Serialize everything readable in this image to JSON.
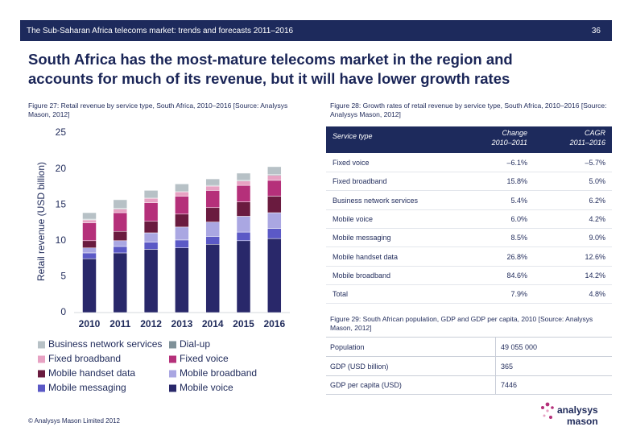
{
  "header": {
    "title": "The Sub-Saharan Africa telecoms market: trends and forecasts 2011–2016",
    "page_number": "36"
  },
  "headline": [
    "South Africa has the most-mature telecoms market in the region and",
    "accounts for much of its revenue, but it will have lower growth rates"
  ],
  "chart_data": {
    "type": "stacked_bar",
    "title": "Figure 27: Retail revenue by service type, South Africa, 2010–2016 [Source: Analysys Mason, 2012]",
    "y_label": "Retail revenue (USD billion)",
    "categories": [
      "2010",
      "2011",
      "2012",
      "2013",
      "2014",
      "2015",
      "2016"
    ],
    "ylim": [
      0,
      25
    ],
    "yticks": [
      0,
      5,
      10,
      15,
      20,
      25
    ],
    "grid": false,
    "series": [
      {
        "name": "Business network services",
        "color": "#b7c1c6",
        "values": [
          0.9,
          1.2,
          1.0,
          1.0,
          0.9,
          1.0,
          1.1
        ]
      },
      {
        "name": "Dial-up",
        "color": "#7f9198",
        "values": [
          0.1,
          0.1,
          0.1,
          0.1,
          0.1,
          0.1,
          0.1
        ]
      },
      {
        "name": "Fixed broadband",
        "color": "#e7a2c3",
        "values": [
          0.4,
          0.5,
          0.6,
          0.6,
          0.6,
          0.6,
          0.7
        ]
      },
      {
        "name": "Fixed voice",
        "color": "#b5307a",
        "values": [
          2.5,
          2.6,
          2.6,
          2.5,
          2.4,
          2.3,
          2.2
        ]
      },
      {
        "name": "Mobile handset data",
        "color": "#6a1b3f",
        "values": [
          1.0,
          1.3,
          1.6,
          1.8,
          2.0,
          2.0,
          2.3
        ]
      },
      {
        "name": "Mobile broadband",
        "color": "#aaa7e2",
        "values": [
          0.7,
          0.8,
          1.3,
          1.8,
          2.0,
          2.2,
          2.2
        ]
      },
      {
        "name": "Mobile messaging",
        "color": "#5b59c6",
        "values": [
          0.8,
          0.9,
          1.0,
          1.1,
          1.1,
          1.2,
          1.4
        ]
      },
      {
        "name": "Mobile voice",
        "color": "#29286a",
        "values": [
          7.5,
          8.3,
          8.8,
          9.0,
          9.5,
          10.0,
          10.3
        ]
      }
    ]
  },
  "figure28": {
    "caption": "Figure 28: Growth rates of retail revenue by service type, South Africa, 2010–2016 [Source: Analysys Mason, 2012]",
    "header": [
      [
        "Service type"
      ],
      [
        "Change",
        "2010–2011"
      ],
      [
        "CAGR",
        "2011–2016"
      ]
    ],
    "rows": [
      [
        "Fixed voice",
        "–6.1%",
        "–5.7%"
      ],
      [
        "Fixed broadband",
        "15.8%",
        "5.0%"
      ],
      [
        "Business network services",
        "5.4%",
        "6.2%"
      ],
      [
        "Mobile voice",
        "6.0%",
        "4.2%"
      ],
      [
        "Mobile messaging",
        "8.5%",
        "9.0%"
      ],
      [
        "Mobile handset data",
        "26.8%",
        "12.6%"
      ],
      [
        "Mobile broadband",
        "84.6%",
        "14.2%"
      ],
      [
        "Total",
        "7.9%",
        "4.8%"
      ]
    ]
  },
  "figure29": {
    "caption": "Figure 29: South African population, GDP and GDP per capita, 2010 [Source: Analysys Mason, 2012]",
    "rows": [
      [
        "Population",
        "49 055 000"
      ],
      [
        "GDP (USD billion)",
        "365"
      ],
      [
        "GDP per capita (USD)",
        "7446"
      ]
    ]
  },
  "footer": {
    "copyright": "© Analysys Mason Limited 2012",
    "logo": [
      "analysys",
      "mason"
    ]
  }
}
